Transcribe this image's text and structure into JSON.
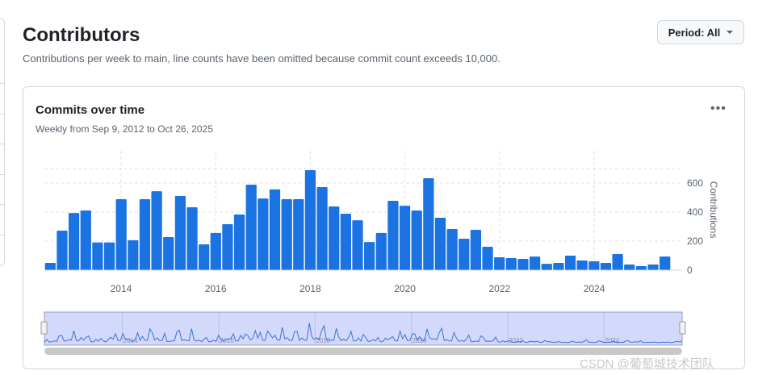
{
  "header": {
    "title": "Contributors",
    "subtitle": "Contributions per week to main, line counts have been omitted because commit count exceeds 10,000.",
    "period_label": "Period: All"
  },
  "card": {
    "title": "Commits over time",
    "subtitle": "Weekly from Sep 9, 2012 to Oct 26, 2025",
    "more_icon": "kebab-horizontal-icon"
  },
  "watermark": "CSDN @葡萄城技术团队",
  "chart_data": {
    "type": "bar",
    "title": "Commits over time",
    "ylabel": "Contributions",
    "xlabel": "",
    "ylim": [
      0,
      700
    ],
    "xlim": [
      2012.38,
      2025.62
    ],
    "yticks": [
      0,
      200,
      400,
      600
    ],
    "xticks": [
      2014,
      2016,
      2018,
      2020,
      2022,
      2024
    ],
    "grid": true,
    "color": "#1a73e0",
    "values": [
      50,
      272,
      394,
      411,
      191,
      191,
      489,
      206,
      489,
      544,
      228,
      511,
      433,
      178,
      256,
      317,
      383,
      589,
      494,
      556,
      489,
      489,
      689,
      572,
      439,
      389,
      344,
      194,
      256,
      478,
      444,
      411,
      633,
      361,
      283,
      217,
      278,
      161,
      89,
      83,
      78,
      94,
      44,
      50,
      100,
      67,
      61,
      50,
      111,
      39,
      28,
      39,
      94
    ]
  }
}
